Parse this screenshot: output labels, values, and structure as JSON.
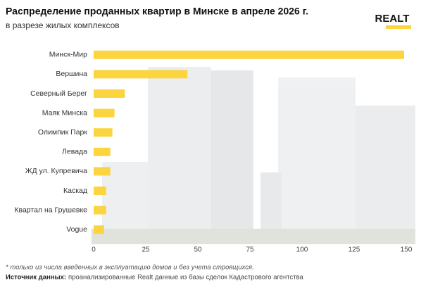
{
  "chart_data": {
    "type": "bar",
    "orientation": "horizontal",
    "title": "Распределение проданных квартир в Минске в апреле 2026 г.",
    "subtitle": "в разрезе жилых комплексов",
    "logo": "REALT",
    "categories": [
      "Минск-Мир",
      "Вершина",
      "Северный Берег",
      "Маяк Минска",
      "Олимпик Парк",
      "Левада",
      "ЖД ул. Купревича",
      "Каскад",
      "Квартал на Грушевке",
      "Vogue"
    ],
    "values": [
      149,
      45,
      15,
      10,
      9,
      8,
      8,
      6,
      6,
      5
    ],
    "color": "#fbd540",
    "xlim": [
      0,
      150
    ],
    "xticks": [
      0,
      25,
      50,
      75,
      100,
      125,
      150
    ],
    "footnote": "* только из числа введенных в эксплуатацию домов и без учета строящихся.",
    "source_label": "Источник данных:",
    "source_text": "проанализированные Realt данные из базы сделок Кадастрового агентства"
  }
}
